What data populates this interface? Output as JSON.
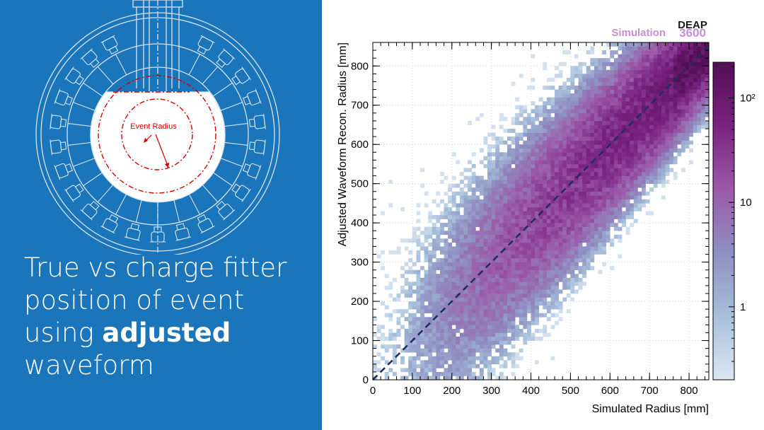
{
  "slide": {
    "caption_lines": [
      {
        "text": "True vs charge fitter"
      },
      {
        "text": "position of event"
      },
      {
        "text": "using ",
        "bold": "adjusted"
      },
      {
        "text": "waveform"
      }
    ],
    "detector_label": "Event Radius",
    "colors": {
      "panel_blue": "#1b75bb",
      "caption_text": "#ffffff",
      "event_marker": "#d40000"
    }
  },
  "chart_data": {
    "type": "heatmap",
    "title": "",
    "simulation_tag": "Simulation",
    "experiment_tag_top": "DEAP",
    "experiment_tag_bottom": "3600",
    "xlabel": "Simulated Radius [mm]",
    "ylabel": "Adjusted Waveform Recon. Radius [mm]",
    "xlim": [
      0,
      850
    ],
    "ylim": [
      0,
      860
    ],
    "xticks": [
      0,
      100,
      200,
      300,
      400,
      500,
      600,
      700,
      800
    ],
    "yticks": [
      0,
      100,
      200,
      300,
      400,
      500,
      600,
      700,
      800
    ],
    "bin_width_mm": 10,
    "colorbar": {
      "scale": "log",
      "range": [
        0.2,
        220
      ],
      "tick_labels": [
        {
          "value": 1,
          "label": "1"
        },
        {
          "value": 10,
          "label": "10"
        },
        {
          "value": 100,
          "label": "10²"
        }
      ],
      "colors": [
        "#dbe7f2",
        "#a7c0db",
        "#8f8fc2",
        "#9b5aa8",
        "#7a2280",
        "#520f55"
      ]
    },
    "diagonal_reference": {
      "from": [
        0,
        0
      ],
      "to": [
        850,
        850
      ],
      "style": "dashed",
      "color": "#1f2f5c"
    },
    "grid": true,
    "density_model": {
      "description": "events concentrate along y = x, spread widens at low radius, density peaks near 700-850 mm",
      "max_count": 200
    }
  }
}
